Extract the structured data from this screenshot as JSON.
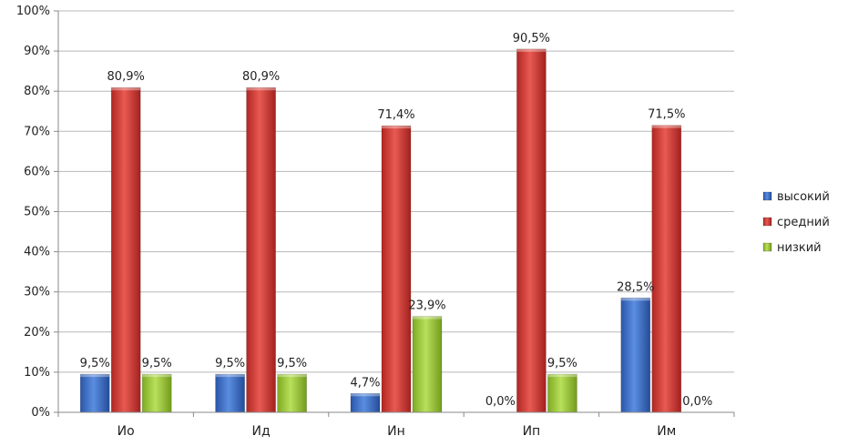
{
  "chart_data": {
    "type": "bar",
    "categories": [
      "Ио",
      "Ид",
      "Ин",
      "Ип",
      "Им"
    ],
    "series": [
      {
        "name": "высокий",
        "values": [
          9.5,
          9.5,
          4.7,
          0.0,
          28.5
        ],
        "labels": [
          "9,5%",
          "9,5%",
          "4,7%",
          "0,0%",
          "28,5%"
        ],
        "color": "#3d6fc4"
      },
      {
        "name": "средний",
        "values": [
          80.9,
          80.9,
          71.4,
          90.5,
          71.5
        ],
        "labels": [
          "80,9%",
          "80,9%",
          "71,4%",
          "90,5%",
          "71,5%"
        ],
        "color": "#d43a35"
      },
      {
        "name": "низкий",
        "values": [
          9.5,
          9.5,
          23.9,
          9.5,
          0.0
        ],
        "labels": [
          "9,5%",
          "9,5%",
          "23,9%",
          "9,5%",
          "0,0%"
        ],
        "color": "#9ccc3c"
      }
    ],
    "ylim": [
      0,
      100
    ],
    "yticks": [
      0,
      10,
      20,
      30,
      40,
      50,
      60,
      70,
      80,
      90,
      100
    ],
    "ytick_labels": [
      "0%",
      "10%",
      "20%",
      "30%",
      "40%",
      "50%",
      "60%",
      "70%",
      "80%",
      "90%",
      "100%"
    ],
    "grid": true,
    "legend_position": "right",
    "title": "",
    "xlabel": "",
    "ylabel": ""
  }
}
